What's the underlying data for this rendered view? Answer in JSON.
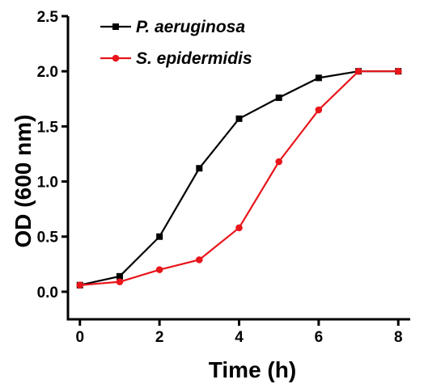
{
  "chart_data": {
    "type": "line",
    "xlabel": "Time (h)",
    "ylabel": "OD (600 nm)",
    "xlim": [
      -0.3,
      8.3
    ],
    "ylim": [
      -0.25,
      2.5
    ],
    "xticks": [
      0,
      2,
      4,
      6,
      8
    ],
    "xtick_labels": [
      "0",
      "2",
      "4",
      "6",
      "8"
    ],
    "yticks": [
      0.0,
      0.5,
      1.0,
      1.5,
      2.0,
      2.5
    ],
    "ytick_labels": [
      "0.0",
      "0.5",
      "1.0",
      "1.5",
      "2.0",
      "2.5"
    ],
    "grid": false,
    "legend_position": "top-left",
    "series": [
      {
        "name": "P. aeruginosa",
        "color": "#000000",
        "marker": "square",
        "x": [
          0,
          1,
          2,
          3,
          4,
          5,
          6,
          7,
          8
        ],
        "y": [
          0.06,
          0.14,
          0.5,
          1.12,
          1.57,
          1.76,
          1.94,
          2.0,
          2.0
        ]
      },
      {
        "name": "S. epidermidis",
        "color": "#e8151b",
        "marker": "circle",
        "x": [
          0,
          1,
          2,
          3,
          4,
          5,
          6,
          7,
          8
        ],
        "y": [
          0.06,
          0.09,
          0.2,
          0.29,
          0.58,
          1.18,
          1.65,
          2.0,
          2.0
        ]
      }
    ]
  }
}
